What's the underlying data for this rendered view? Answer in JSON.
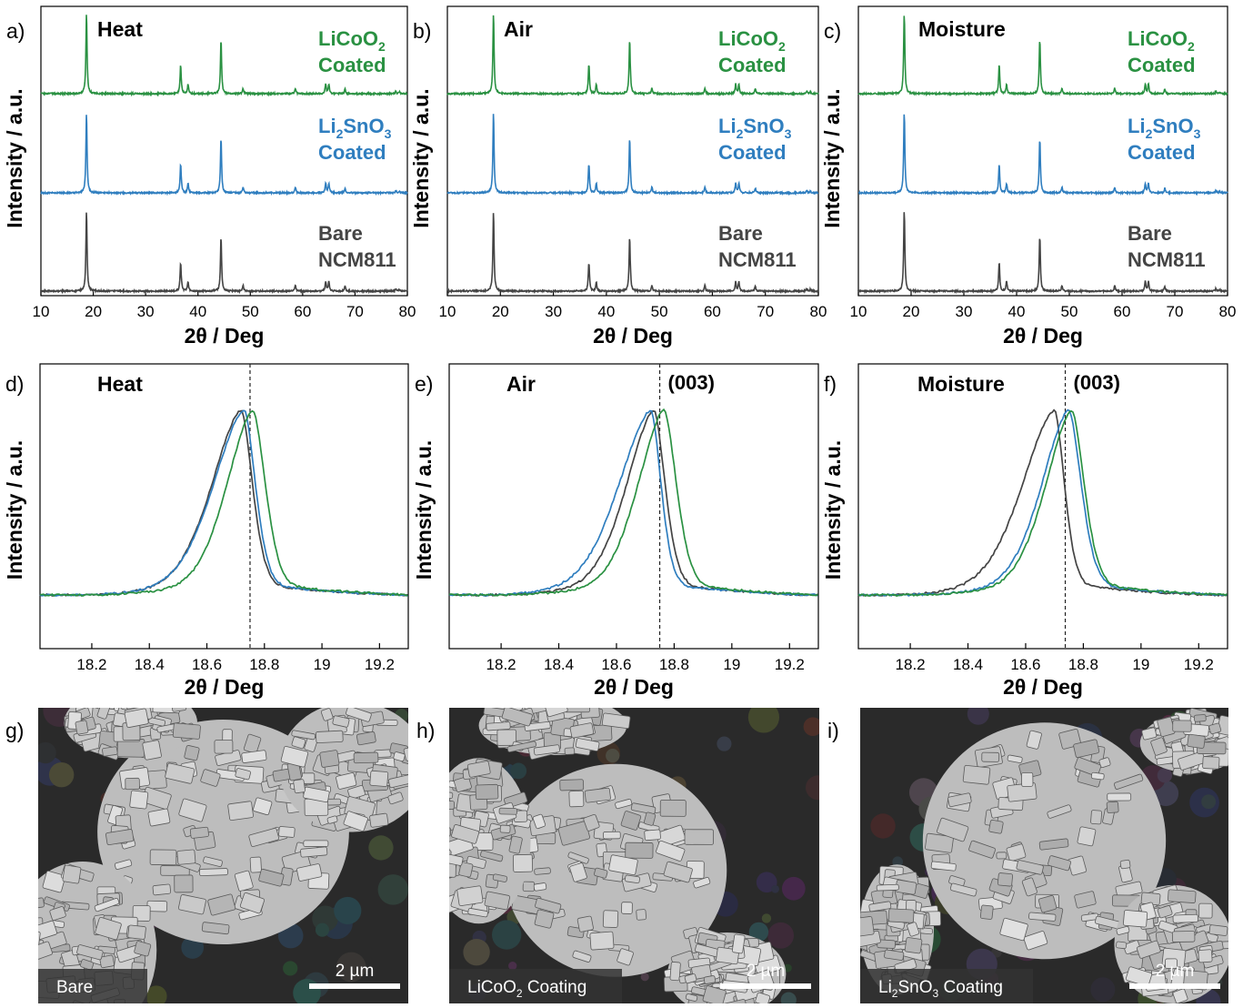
{
  "colors": {
    "licoo2": "#2a9142",
    "li2sno3": "#2f7ebf",
    "bare": "#444444",
    "axis": "#000000"
  },
  "xrd_panels": [
    {
      "letter": "a)",
      "condition": "Heat"
    },
    {
      "letter": "b)",
      "condition": "Air"
    },
    {
      "letter": "c)",
      "condition": "Moisture"
    }
  ],
  "xrd_series_labels": {
    "licoo2": {
      "line1_main": "LiCoO",
      "line1_sub": "2",
      "line2": "Coated"
    },
    "li2sno3": {
      "line1_pre": "Li",
      "line1_sub1": "2",
      "line1_mid": "SnO",
      "line1_sub2": "3",
      "line2": "Coated"
    },
    "bare": {
      "line1": "Bare",
      "line2": "NCM811"
    }
  },
  "peak_panels": [
    {
      "letter": "d)",
      "condition": "Heat",
      "peak_label": ""
    },
    {
      "letter": "e)",
      "condition": "Air",
      "peak_label": "(003)"
    },
    {
      "letter": "f)",
      "condition": "Moisture",
      "peak_label": "(003)"
    }
  ],
  "axis_labels": {
    "xlabel": "2θ / Deg",
    "ylabel": "Intensity / a.u."
  },
  "sem_panels": [
    {
      "letter": "g)",
      "label_main": "Bare",
      "label_sub": "",
      "label_tail": "",
      "label_pre": "",
      "scale": "2 µm"
    },
    {
      "letter": "h)",
      "label_pre": "LiCoO",
      "label_sub": "2",
      "label_tail": " Coating",
      "label_main": "",
      "scale": "2 µm"
    },
    {
      "letter": "i)",
      "label_pre": "Li",
      "label_sub": "2",
      "label_tail": "SnO",
      "label_sub2": "3",
      "label_tail2": " Coating",
      "label_main": "",
      "scale": "2 µm"
    }
  ],
  "chart_data": [
    {
      "type": "line",
      "xlim": [
        10,
        80
      ],
      "xticks": [
        10,
        20,
        30,
        40,
        50,
        60,
        70,
        80
      ],
      "peaks": [
        {
          "x": 18.7,
          "h": 1.0
        },
        {
          "x": 36.7,
          "h": 0.36
        },
        {
          "x": 38.1,
          "h": 0.12
        },
        {
          "x": 44.4,
          "h": 0.68
        },
        {
          "x": 48.6,
          "h": 0.07
        },
        {
          "x": 58.6,
          "h": 0.07
        },
        {
          "x": 64.4,
          "h": 0.12
        },
        {
          "x": 65.0,
          "h": 0.12
        },
        {
          "x": 68.1,
          "h": 0.06
        },
        {
          "x": 77.8,
          "h": 0.03
        },
        {
          "x": 78.5,
          "h": 0.02
        }
      ],
      "series": [
        {
          "name": "LiCoO2 Coated",
          "key": "licoo2"
        },
        {
          "name": "Li2SnO3 Coated",
          "key": "li2sno3"
        },
        {
          "name": "Bare NCM811",
          "key": "bare"
        }
      ]
    },
    {
      "type": "line",
      "xlim": [
        18.02,
        19.3
      ],
      "xticks": [
        18.2,
        18.4,
        18.6,
        18.8,
        19.0,
        19.2
      ],
      "reference_line_x": 18.75,
      "panels": [
        {
          "series": [
            {
              "key": "bare",
              "peak_x": 18.72,
              "wl": 0.12,
              "wr": 0.045
            },
            {
              "key": "li2sno3",
              "peak_x": 18.73,
              "wl": 0.125,
              "wr": 0.045
            },
            {
              "key": "licoo2",
              "peak_x": 18.76,
              "wl": 0.105,
              "wr": 0.05
            }
          ]
        },
        {
          "series": [
            {
              "key": "bare",
              "peak_x": 18.73,
              "wl": 0.11,
              "wr": 0.045
            },
            {
              "key": "li2sno3",
              "peak_x": 18.72,
              "wl": 0.13,
              "wr": 0.04
            },
            {
              "key": "licoo2",
              "peak_x": 18.765,
              "wl": 0.105,
              "wr": 0.05
            }
          ]
        },
        {
          "series": [
            {
              "key": "bare",
              "peak_x": 18.7,
              "wl": 0.13,
              "wr": 0.04
            },
            {
              "key": "li2sno3",
              "peak_x": 18.75,
              "wl": 0.11,
              "wr": 0.05
            },
            {
              "key": "licoo2",
              "peak_x": 18.76,
              "wl": 0.105,
              "wr": 0.05
            }
          ]
        }
      ]
    }
  ]
}
